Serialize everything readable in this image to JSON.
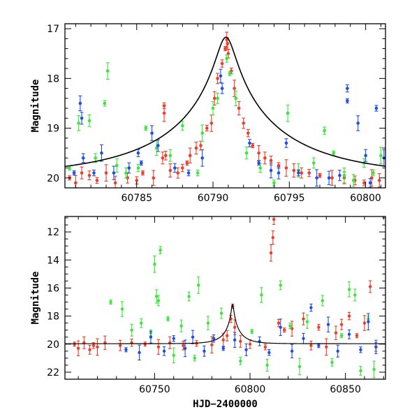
{
  "chart_data": [
    {
      "type": "scatter",
      "title": "",
      "xlabel": "",
      "ylabel": "Magnitude",
      "xlim": [
        60780.3,
        60801.3
      ],
      "ylim": [
        20.2,
        16.9
      ],
      "y_inverted": true,
      "xticks": [
        60785,
        60790,
        60795,
        60800
      ],
      "xtick_labels": [
        "60785",
        "60790",
        "60795",
        "60800"
      ],
      "yticks": [
        17,
        18,
        19,
        20
      ],
      "ytick_labels": [
        "17",
        "18",
        "19",
        "20"
      ],
      "grid": false,
      "colors": {
        "red": "#f03c28",
        "green": "#39e639",
        "blue": "#1e4ee6",
        "model": "#000000"
      },
      "model_curve": {
        "baseline": 19.97,
        "amplitude_mag": 2.8,
        "t0": 60790.85,
        "u0": 0.065,
        "tE": 9.0
      },
      "series": [
        {
          "color_key": "red",
          "points": [
            [
              60780.6,
              20.0
            ],
            [
              60781.0,
              20.1
            ],
            [
              60781.4,
              19.9
            ],
            [
              60781.9,
              19.95
            ],
            [
              60782.4,
              20.05
            ],
            [
              60783.0,
              19.9
            ],
            [
              60783.6,
              20.1
            ],
            [
              60784.4,
              20.0
            ],
            [
              60785.0,
              20.05
            ],
            [
              60785.4,
              19.9
            ],
            [
              60786.1,
              20.0
            ],
            [
              60786.7,
              19.6
            ],
            [
              60786.9,
              19.55
            ],
            [
              60786.8,
              18.55
            ],
            [
              60786.8,
              18.7
            ],
            [
              60787.2,
              19.85
            ],
            [
              60787.7,
              19.9
            ],
            [
              60788.0,
              19.8
            ],
            [
              60788.3,
              19.7
            ],
            [
              60788.5,
              19.55
            ],
            [
              60788.9,
              19.4
            ],
            [
              60789.2,
              19.35
            ],
            [
              60789.6,
              19.0
            ],
            [
              60789.9,
              18.9
            ],
            [
              60790.1,
              18.4
            ],
            [
              60790.3,
              18.0
            ],
            [
              60790.6,
              17.7
            ],
            [
              60790.8,
              17.4
            ],
            [
              60790.9,
              17.22
            ],
            [
              60790.95,
              17.3
            ],
            [
              60791.0,
              17.5
            ],
            [
              60791.2,
              17.85
            ],
            [
              60791.4,
              18.2
            ],
            [
              60791.7,
              18.6
            ],
            [
              60792.0,
              18.9
            ],
            [
              60792.3,
              19.1
            ],
            [
              60792.6,
              19.35
            ],
            [
              60793.0,
              19.5
            ],
            [
              60793.4,
              19.6
            ],
            [
              60793.8,
              19.65
            ],
            [
              60794.3,
              19.75
            ],
            [
              60794.8,
              19.8
            ],
            [
              60795.3,
              19.85
            ],
            [
              60795.8,
              19.9
            ],
            [
              60796.3,
              19.9
            ],
            [
              60797.0,
              19.95
            ],
            [
              60797.8,
              20.0
            ],
            [
              60798.6,
              20.0
            ],
            [
              60799.3,
              20.05
            ],
            [
              60799.9,
              20.1
            ],
            [
              60800.4,
              20.0
            ],
            [
              60800.9,
              20.05
            ]
          ]
        },
        {
          "color_key": "green",
          "points": [
            [
              60780.6,
              19.8
            ],
            [
              60781.2,
              18.9
            ],
            [
              60781.9,
              18.85
            ],
            [
              60782.3,
              19.6
            ],
            [
              60782.9,
              18.5
            ],
            [
              60783.1,
              17.85
            ],
            [
              60783.7,
              19.75
            ],
            [
              60784.3,
              19.9
            ],
            [
              60785.1,
              19.8
            ],
            [
              60785.6,
              19.0
            ],
            [
              60786.3,
              19.4
            ],
            [
              60787.2,
              19.55
            ],
            [
              60788.0,
              18.95
            ],
            [
              60789.0,
              19.9
            ],
            [
              60789.3,
              19.1
            ],
            [
              60790.0,
              18.6
            ],
            [
              60790.3,
              18.4
            ],
            [
              60790.9,
              17.6
            ],
            [
              60791.1,
              17.9
            ],
            [
              60791.5,
              18.4
            ],
            [
              60792.2,
              19.5
            ],
            [
              60793.1,
              19.8
            ],
            [
              60794.0,
              20.1
            ],
            [
              60794.9,
              18.7
            ],
            [
              60795.6,
              19.85
            ],
            [
              60796.6,
              19.7
            ],
            [
              60797.3,
              19.05
            ],
            [
              60797.9,
              19.5
            ],
            [
              60798.6,
              19.95
            ],
            [
              60799.2,
              20.05
            ],
            [
              60799.9,
              19.7
            ],
            [
              60800.5,
              19.9
            ],
            [
              60801.0,
              19.55
            ]
          ]
        },
        {
          "color_key": "blue",
          "points": [
            [
              60780.9,
              19.9
            ],
            [
              60781.3,
              18.5
            ],
            [
              60781.4,
              18.8
            ],
            [
              60781.5,
              19.6
            ],
            [
              60782.2,
              19.9
            ],
            [
              60782.7,
              19.5
            ],
            [
              60783.5,
              19.9
            ],
            [
              60784.5,
              19.8
            ],
            [
              60785.1,
              19.5
            ],
            [
              60785.3,
              19.7
            ],
            [
              60786.0,
              19.1
            ],
            [
              60786.4,
              19.35
            ],
            [
              60787.5,
              19.8
            ],
            [
              60788.4,
              19.9
            ],
            [
              60789.3,
              19.6
            ],
            [
              60790.5,
              17.95
            ],
            [
              60790.6,
              18.2
            ],
            [
              60792.4,
              19.3
            ],
            [
              60793.0,
              19.7
            ],
            [
              60793.8,
              19.85
            ],
            [
              60794.3,
              19.9
            ],
            [
              60794.8,
              19.3
            ],
            [
              60795.6,
              19.9
            ],
            [
              60796.8,
              20.0
            ],
            [
              60797.6,
              20.0
            ],
            [
              60798.3,
              19.95
            ],
            [
              60798.8,
              18.2
            ],
            [
              60798.8,
              18.45
            ],
            [
              60799.5,
              18.9
            ],
            [
              60800.0,
              19.55
            ],
            [
              60800.3,
              20.1
            ],
            [
              60800.7,
              18.6
            ],
            [
              60801.2,
              19.6
            ]
          ]
        }
      ]
    },
    {
      "type": "scatter",
      "title": "",
      "xlabel": "HJD−2400000",
      "ylabel": "Magnitude",
      "xlim": [
        60703,
        60871
      ],
      "ylim": [
        22.5,
        10.9
      ],
      "y_inverted": true,
      "xticks": [
        60750,
        60800,
        60850
      ],
      "xtick_labels": [
        "60750",
        "60800",
        "60850"
      ],
      "yticks": [
        12,
        14,
        16,
        18,
        20,
        22
      ],
      "ytick_labels": [
        "12",
        "14",
        "16",
        "18",
        "20",
        "22"
      ],
      "grid": false,
      "colors": {
        "red": "#f03c28",
        "green": "#39e639",
        "blue": "#1e4ee6",
        "model": "#000000"
      },
      "model_curve": {
        "baseline": 19.97,
        "amplitude_mag": 2.8,
        "t0": 60790.85,
        "u0": 0.065,
        "tE": 9.0
      },
      "series": [
        {
          "color_key": "red",
          "points": [
            [
              60708,
              20.0
            ],
            [
              60710,
              20.3
            ],
            [
              60713,
              19.9
            ],
            [
              60716,
              20.4
            ],
            [
              60718,
              20.1
            ],
            [
              60720,
              20.2
            ],
            [
              60724,
              19.9
            ],
            [
              60732,
              20.1
            ],
            [
              60738,
              19.9
            ],
            [
              60745,
              20.0
            ],
            [
              60752,
              20.2
            ],
            [
              60758,
              19.9
            ],
            [
              60765,
              20.1
            ],
            [
              60772,
              19.95
            ],
            [
              60780,
              20.05
            ],
            [
              60786,
              19.7
            ],
            [
              60788,
              19.4
            ],
            [
              60790,
              18.2
            ],
            [
              60790.9,
              17.3
            ],
            [
              60792,
              18.8
            ],
            [
              60795,
              19.8
            ],
            [
              60800,
              20.0
            ],
            [
              60808,
              20.2
            ],
            [
              60811,
              13.5
            ],
            [
              60812,
              12.4
            ],
            [
              60812.5,
              11.1
            ],
            [
              60815,
              18.5
            ],
            [
              60818,
              19.0
            ],
            [
              60822,
              18.9
            ],
            [
              60828,
              18.2
            ],
            [
              60832,
              20.1
            ],
            [
              60836,
              18.8
            ],
            [
              60840,
              20.2
            ],
            [
              60845,
              19.2
            ],
            [
              60848,
              18.6
            ],
            [
              60852,
              18.0
            ],
            [
              60856,
              19.4
            ],
            [
              60860,
              18.5
            ],
            [
              60863,
              15.9
            ],
            [
              60866,
              20.2
            ]
          ]
        },
        {
          "color_key": "green",
          "points": [
            [
              60727,
              17.0
            ],
            [
              60733,
              17.5
            ],
            [
              60738,
              19.0
            ],
            [
              60743,
              18.5
            ],
            [
              60748,
              19.2
            ],
            [
              60750,
              14.3
            ],
            [
              60751,
              16.6
            ],
            [
              60752,
              16.9
            ],
            [
              60753,
              13.3
            ],
            [
              60757,
              18.2
            ],
            [
              60760,
              20.8
            ],
            [
              60764,
              18.7
            ],
            [
              60768,
              16.6
            ],
            [
              60771,
              21.0
            ],
            [
              60773,
              15.8
            ],
            [
              60778,
              18.5
            ],
            [
              60785,
              17.8
            ],
            [
              60795,
              21.2
            ],
            [
              60801,
              19.1
            ],
            [
              60806,
              16.5
            ],
            [
              60809,
              21.5
            ],
            [
              60816,
              15.8
            ],
            [
              60821,
              18.7
            ],
            [
              60826,
              21.6
            ],
            [
              60830,
              18.4
            ],
            [
              60838,
              16.9
            ],
            [
              60843,
              21.3
            ],
            [
              60848,
              19.4
            ],
            [
              60852,
              16.1
            ],
            [
              60855,
              16.5
            ],
            [
              60858,
              21.9
            ],
            [
              60862,
              18.2
            ],
            [
              60865,
              21.8
            ]
          ]
        },
        {
          "color_key": "blue",
          "points": [
            [
              60735,
              20.4
            ],
            [
              60742,
              20.6
            ],
            [
              60748,
              19.5
            ],
            [
              60755,
              20.5
            ],
            [
              60760,
              19.6
            ],
            [
              60766,
              20.3
            ],
            [
              60770,
              19.5
            ],
            [
              60776,
              20.5
            ],
            [
              60781,
              19.6
            ],
            [
              60786,
              20.3
            ],
            [
              60792,
              19.7
            ],
            [
              60798,
              20.4
            ],
            [
              60805,
              19.8
            ],
            [
              60810,
              20.6
            ],
            [
              60816,
              18.8
            ],
            [
              60822,
              20.5
            ],
            [
              60828,
              19.6
            ],
            [
              60832,
              17.4
            ],
            [
              60836,
              20.1
            ],
            [
              60841,
              18.6
            ],
            [
              60846,
              20.5
            ],
            [
              60852,
              19.3
            ],
            [
              60858,
              20.4
            ],
            [
              60862,
              18.4
            ],
            [
              60866,
              20.2
            ]
          ]
        }
      ]
    }
  ]
}
